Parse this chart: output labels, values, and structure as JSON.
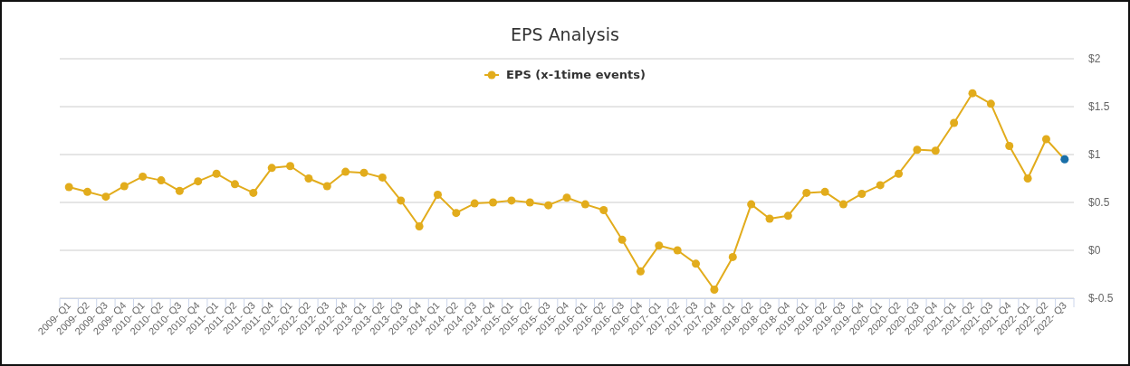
{
  "chart_data": {
    "type": "line",
    "title": "EPS Analysis",
    "categories": [
      "2009- Q1",
      "2009- Q2",
      "2009- Q3",
      "2009- Q4",
      "2010- Q1",
      "2010- Q2",
      "2010- Q3",
      "2010- Q4",
      "2011- Q1",
      "2011- Q2",
      "2011- Q3",
      "2011- Q4",
      "2012- Q1",
      "2012- Q2",
      "2012- Q3",
      "2012- Q4",
      "2013- Q1",
      "2013- Q2",
      "2013- Q3",
      "2013- Q4",
      "2014- Q1",
      "2014- Q2",
      "2014- Q3",
      "2014- Q4",
      "2015- Q1",
      "2015- Q2",
      "2015- Q3",
      "2015- Q4",
      "2016- Q1",
      "2016- Q2",
      "2016- Q3",
      "2016- Q4",
      "2017- Q1",
      "2017- Q2",
      "2017- Q3",
      "2017- Q4",
      "2018- Q1",
      "2018- Q2",
      "2018- Q3",
      "2018- Q4",
      "2019- Q1",
      "2019- Q2",
      "2019- Q3",
      "2019- Q4",
      "2020- Q1",
      "2020- Q2",
      "2020- Q3",
      "2020- Q4",
      "2021- Q1",
      "2021- Q2",
      "2021- Q3",
      "2021- Q4",
      "2022- Q1",
      "2022- Q2",
      "2022- Q3"
    ],
    "series": [
      {
        "name": "EPS (x-1time events)",
        "color": "#e2ac1c",
        "colors": [
          "#e2ac1c",
          "#e2ac1c",
          "#e2ac1c",
          "#e2ac1c",
          "#e2ac1c",
          "#e2ac1c",
          "#e2ac1c",
          "#e2ac1c",
          "#e2ac1c",
          "#e2ac1c",
          "#e2ac1c",
          "#e2ac1c",
          "#e2ac1c",
          "#e2ac1c",
          "#e2ac1c",
          "#e2ac1c",
          "#e2ac1c",
          "#e2ac1c",
          "#e2ac1c",
          "#e2ac1c",
          "#e2ac1c",
          "#e2ac1c",
          "#e2ac1c",
          "#e2ac1c",
          "#e2ac1c",
          "#e2ac1c",
          "#e2ac1c",
          "#e2ac1c",
          "#e2ac1c",
          "#e2ac1c",
          "#e2ac1c",
          "#e2ac1c",
          "#e2ac1c",
          "#e2ac1c",
          "#e2ac1c",
          "#e2ac1c",
          "#e2ac1c",
          "#e2ac1c",
          "#e2ac1c",
          "#e2ac1c",
          "#e2ac1c",
          "#e2ac1c",
          "#e2ac1c",
          "#e2ac1c",
          "#e2ac1c",
          "#e2ac1c",
          "#e2ac1c",
          "#e2ac1c",
          "#e2ac1c",
          "#e2ac1c",
          "#e2ac1c",
          "#e2ac1c",
          "#e2ac1c",
          "#e2ac1c",
          "#1a6fa8"
        ],
        "values": [
          0.66,
          0.61,
          0.56,
          0.67,
          0.77,
          0.73,
          0.62,
          0.72,
          0.8,
          0.69,
          0.6,
          0.86,
          0.88,
          0.75,
          0.67,
          0.82,
          0.81,
          0.76,
          0.52,
          0.25,
          0.58,
          0.39,
          0.49,
          0.5,
          0.52,
          0.5,
          0.47,
          0.55,
          0.48,
          0.42,
          0.11,
          -0.22,
          0.05,
          0.0,
          -0.14,
          -0.41,
          -0.07,
          0.48,
          0.33,
          0.36,
          0.6,
          0.61,
          0.48,
          0.59,
          0.68,
          0.8,
          1.05,
          1.04,
          1.33,
          1.64,
          1.53,
          1.09,
          0.75,
          1.16,
          0.95
        ]
      }
    ],
    "ylim": [
      -0.5,
      2
    ],
    "yticks": [
      {
        "value": -0.5,
        "label": "$-0.5"
      },
      {
        "value": 0,
        "label": "$0"
      },
      {
        "value": 0.5,
        "label": "$0.5"
      },
      {
        "value": 1,
        "label": "$1"
      },
      {
        "value": 1.5,
        "label": "$1.5"
      },
      {
        "value": 2,
        "label": "$2"
      }
    ],
    "grid": "y",
    "legend": "top",
    "marker": "circle",
    "line_style": "solid"
  }
}
